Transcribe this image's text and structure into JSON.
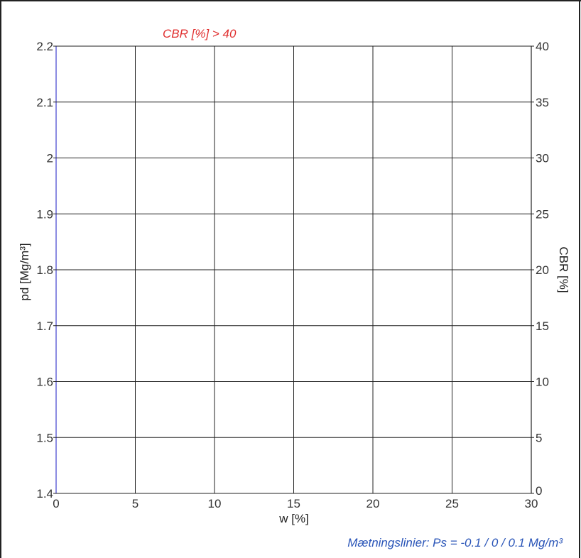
{
  "chart_data": {
    "type": "scatter",
    "title": "",
    "xlabel": "w [%]",
    "ylabel": "pd [Mg/m³]",
    "y2label": "CBR [%]",
    "xlim": [
      0,
      30
    ],
    "ylim": [
      1.4,
      2.2
    ],
    "y2lim": [
      0,
      40
    ],
    "x_ticks": [
      0,
      5,
      10,
      15,
      20,
      25,
      30
    ],
    "y_ticks": [
      1.4,
      1.5,
      1.6,
      1.7,
      1.8,
      1.9,
      2.0,
      2.1,
      2.2
    ],
    "y_tick_labels": [
      "1.4",
      "1.5",
      "1.6",
      "1.7",
      "1.8",
      "1.9",
      "2",
      "2.1",
      "2.2"
    ],
    "y2_ticks": [
      0,
      5,
      10,
      15,
      20,
      25,
      30,
      35,
      40
    ],
    "grid": true,
    "series": [],
    "annotations": {
      "cbr_note": "CBR [%] > 40",
      "saturation_note": "Mætningslinier: Ps = -0.1 / 0 / 0.1 Mg/m³"
    },
    "colors": {
      "grid": "#222222",
      "left_axis": "#5a5ad6",
      "cbr_note": "#e03030",
      "saturation_note": "#2a55b8"
    }
  }
}
